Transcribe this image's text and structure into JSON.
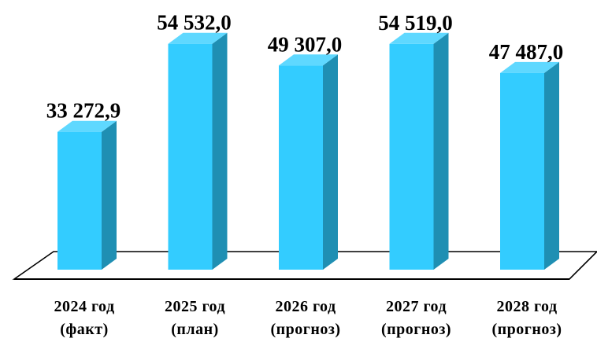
{
  "chart_data": {
    "type": "bar",
    "categories": [
      [
        "2024 год",
        "(факт)"
      ],
      [
        "2025 год",
        "(план)"
      ],
      [
        "2026 год",
        "(прогноз)"
      ],
      [
        "2027 год",
        "(прогноз)"
      ],
      [
        "2028 год",
        "(прогноз)"
      ]
    ],
    "values": [
      33272.9,
      54532.0,
      49307.0,
      54519.0,
      47487.0
    ],
    "value_labels": [
      "33 272,9",
      "54 532,0",
      "49 307,0",
      "54 519,0",
      "47 487,0"
    ],
    "title": "",
    "xlabel": "",
    "ylabel": "",
    "ylim": [
      0,
      56000
    ],
    "grid": false,
    "legend": "none",
    "style": "3d-column"
  },
  "colors": {
    "bar_front": "#33ccff",
    "bar_side": "#1f8fb3",
    "bar_top": "#5fd8ff",
    "floor_stroke": "#000000",
    "text": "#000000"
  }
}
